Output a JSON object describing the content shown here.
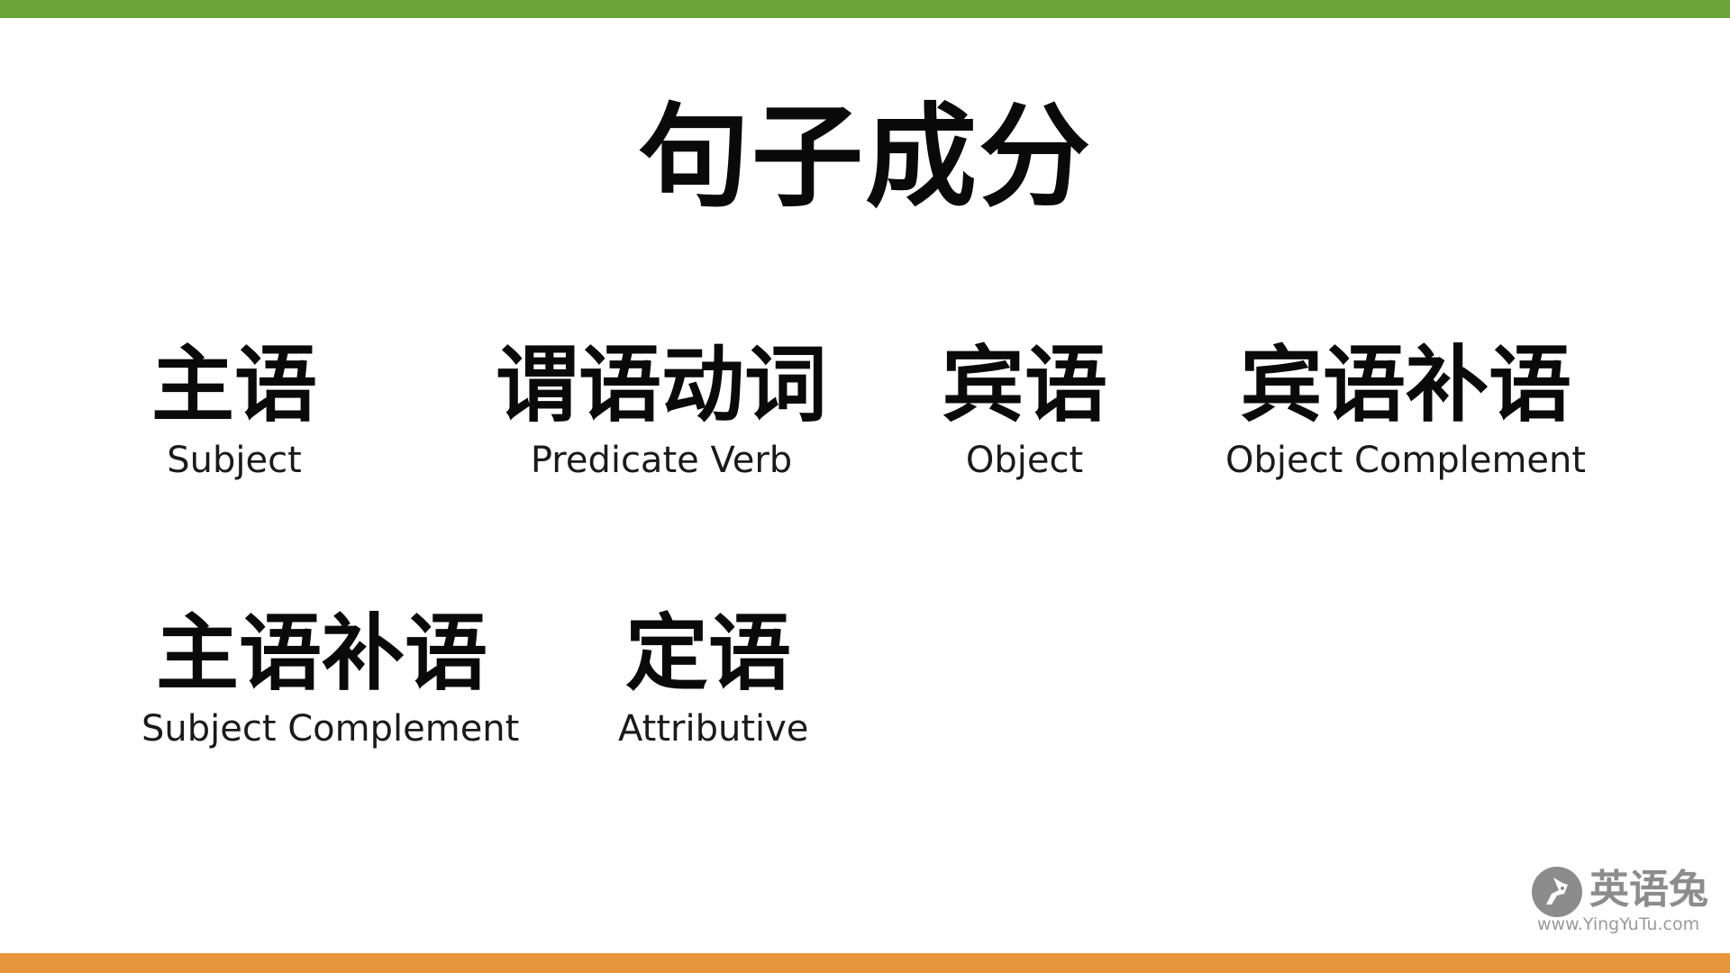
{
  "title": "句子成分",
  "terms": [
    {
      "zh": "主语",
      "en": "Subject"
    },
    {
      "zh": "谓语动词",
      "en": "Predicate Verb"
    },
    {
      "zh": "宾语",
      "en": "Object"
    },
    {
      "zh": "宾语补语",
      "en": "Object Complement"
    },
    {
      "zh": "主语补语",
      "en": "Subject Complement"
    },
    {
      "zh": "定语",
      "en": "Attributive"
    }
  ],
  "logo": {
    "name": "英语兔",
    "url": "www.YingYuTu.com"
  },
  "colors": {
    "top_bar": "#6aa339",
    "bottom_bar": "#e8963e",
    "text": "#0a0a0a",
    "logo": "#8c8c8c"
  }
}
